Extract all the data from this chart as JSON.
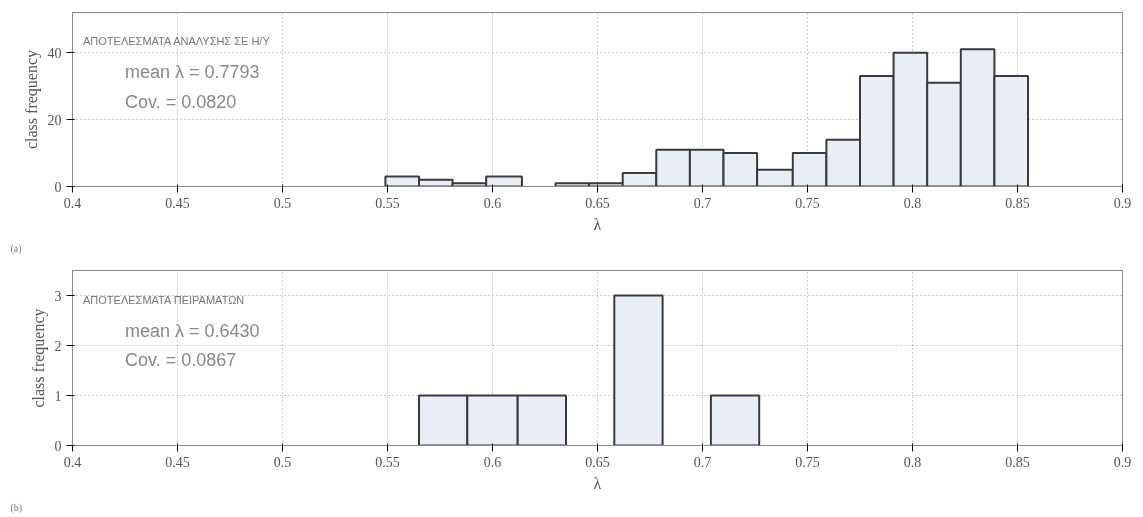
{
  "chart_data": [
    {
      "type": "histogram",
      "title": "ΑΠΟΤΕΛΕΣΜΑΤΑ ΑΝΑΛΥΣΗΣ ΣΕ Η/Υ",
      "xlabel": "λ",
      "ylabel": "class frequency",
      "bins": [
        0.549,
        0.565,
        0.581,
        0.597,
        0.614,
        0.63,
        0.646,
        0.662,
        0.678,
        0.694,
        0.71,
        0.726,
        0.743,
        0.759,
        0.775,
        0.791,
        0.807,
        0.823,
        0.839,
        0.855
      ],
      "values": [
        3,
        2,
        1,
        3,
        0,
        1,
        1,
        4,
        11,
        11,
        10,
        5,
        10,
        14,
        33,
        40,
        31,
        41,
        33
      ],
      "color": "#e8edf6",
      "xlim": [
        0.4,
        0.9
      ],
      "xticks": [
        0.4,
        0.45,
        0.5,
        0.55,
        0.6,
        0.65,
        0.7,
        0.75,
        0.8,
        0.85,
        0.9
      ],
      "ylim": [
        0,
        52
      ],
      "yticks": [
        0,
        20,
        40
      ],
      "grid": true,
      "annotations": [
        "mean λ = 0.7793",
        "Cov. = 0.0820",
        "(a)"
      ]
    },
    {
      "type": "histogram",
      "title": "ΑΠΟΤΕΛΕΣΜΑΤΑ ΠΕΙΡΑΜΑΤΩΝ",
      "xlabel": "λ",
      "ylabel": "class frequency",
      "bins": [
        0.565,
        0.588,
        0.612,
        0.635,
        0.658,
        0.681,
        0.704,
        0.727
      ],
      "values": [
        1,
        1,
        1,
        0,
        3,
        0,
        1
      ],
      "color": "#e8edf6",
      "xlim": [
        0.4,
        0.9
      ],
      "xticks": [
        0.4,
        0.45,
        0.5,
        0.55,
        0.6,
        0.65,
        0.7,
        0.75,
        0.8,
        0.85,
        0.9
      ],
      "ylim": [
        0,
        3.5
      ],
      "yticks": [
        0,
        1,
        2,
        3
      ],
      "grid": true,
      "annotations": [
        "mean λ = 0.6430",
        "Cov. = 0.0867",
        "(b)"
      ]
    }
  ]
}
